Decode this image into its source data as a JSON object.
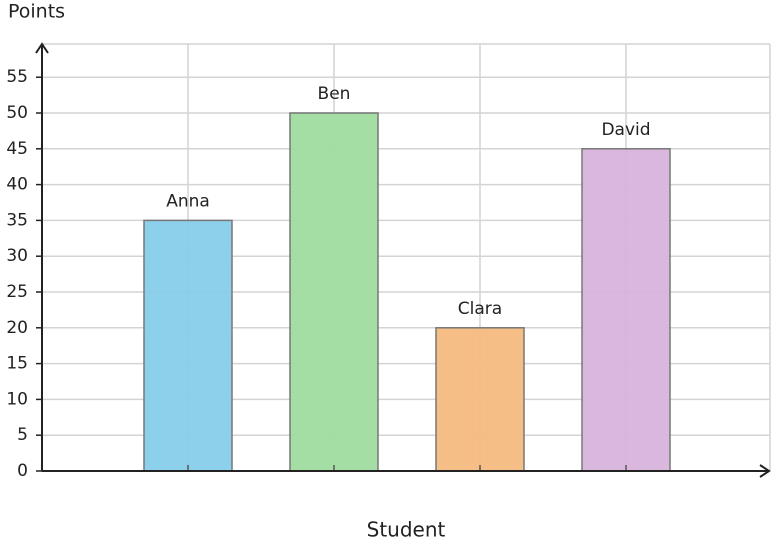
{
  "chart_data": {
    "type": "bar",
    "ylabel": "Points",
    "xlabel": "Student",
    "categories": [
      "Anna",
      "Ben",
      "Clara",
      "David"
    ],
    "values": [
      35,
      50,
      20,
      45
    ],
    "colors": [
      "#87ceeb",
      "#a0dca0",
      "#f4bb80",
      "#d8b4dc"
    ],
    "ylim": [
      0,
      60
    ],
    "yticks": [
      0,
      5,
      10,
      15,
      20,
      25,
      30,
      35,
      40,
      45,
      50,
      55
    ],
    "grid": true
  }
}
